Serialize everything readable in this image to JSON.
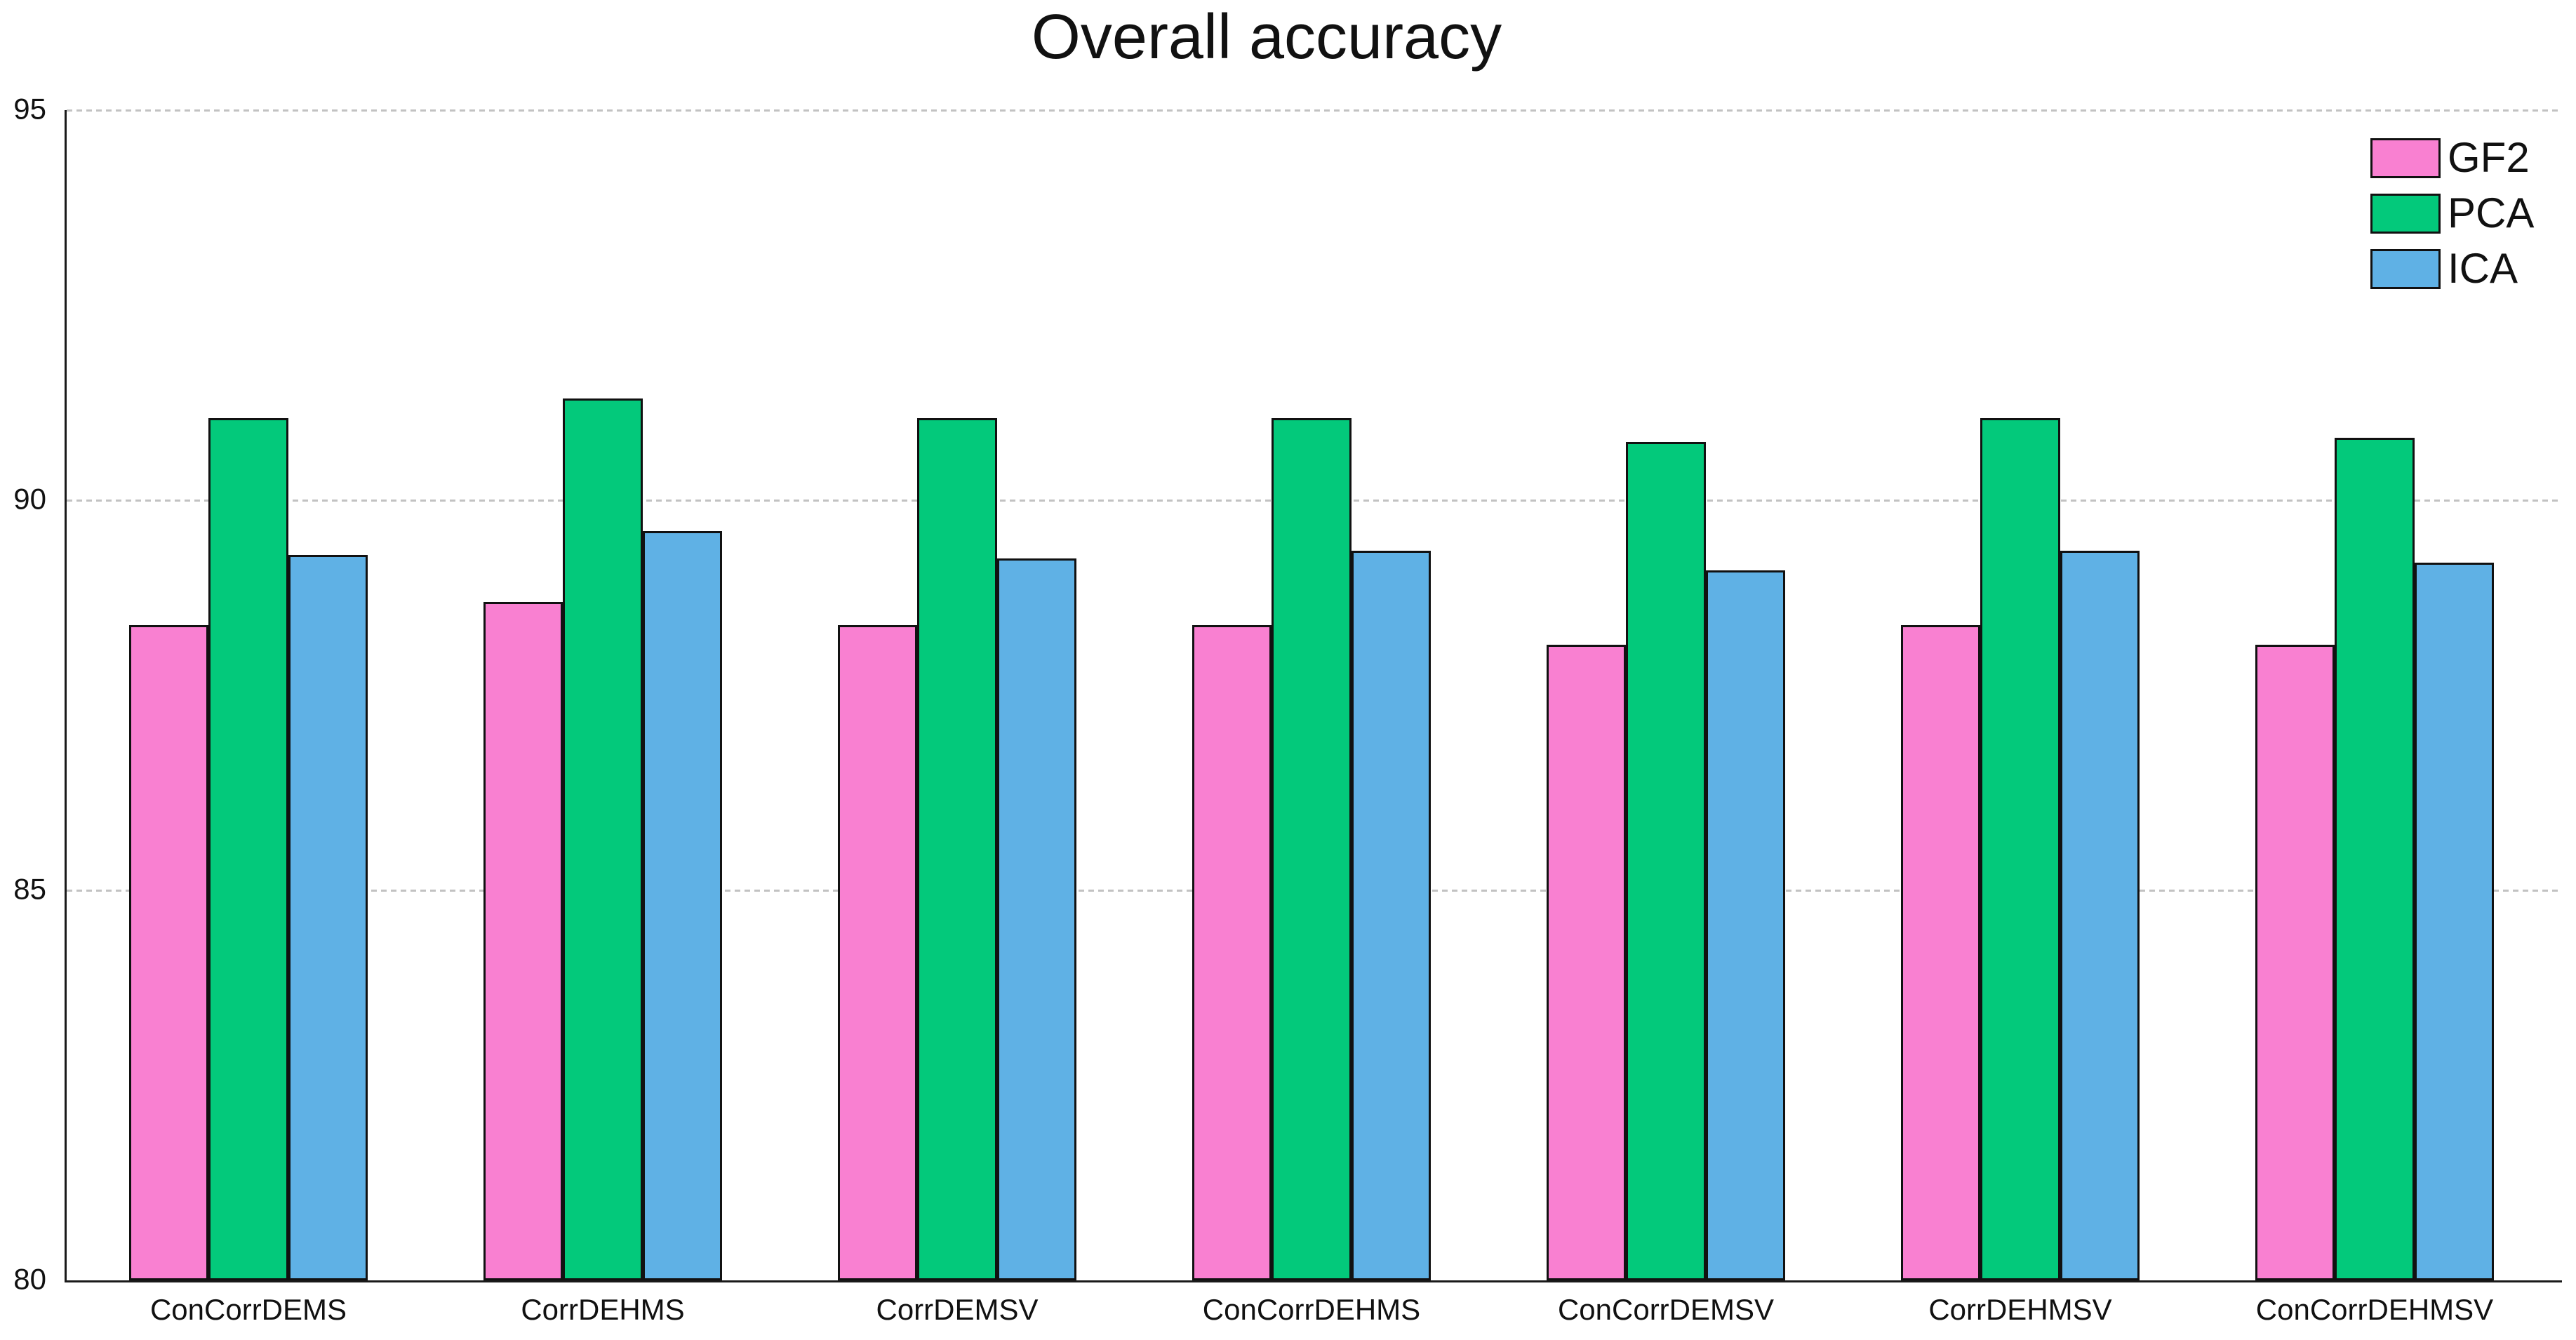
{
  "chart_data": {
    "type": "bar",
    "title": "Overall accuracy",
    "categories": [
      "ConCorrDEMS",
      "CorrDEHMS",
      "CorrDEMSV",
      "ConCorrDEHMS",
      "ConCorrDEMSV",
      "CorrDEHMSV",
      "ConCorrDEHMSV"
    ],
    "series": [
      {
        "name": "GF2",
        "color": "#F980D1",
        "values": [
          88.4,
          88.7,
          88.4,
          88.4,
          88.15,
          88.4,
          88.15
        ]
      },
      {
        "name": "PCA",
        "color": "#03C97B",
        "values": [
          91.05,
          91.3,
          91.05,
          91.05,
          90.75,
          91.05,
          90.8
        ]
      },
      {
        "name": "ICA",
        "color": "#5FB1E5",
        "values": [
          89.3,
          89.6,
          89.25,
          89.35,
          89.1,
          89.35,
          89.2
        ]
      }
    ],
    "xlabel": "",
    "ylabel": "",
    "ylim": [
      80,
      95
    ],
    "yticks": [
      80,
      85,
      90,
      95
    ],
    "grid": "horizontal dashed gridlines at 85, 90, 95",
    "legend_position": "top-right",
    "axis_color": "#1a1a1a",
    "gridline_color": "#c2c2c2",
    "bar_outline_color": "#111111",
    "background_color": "#ffffff"
  }
}
